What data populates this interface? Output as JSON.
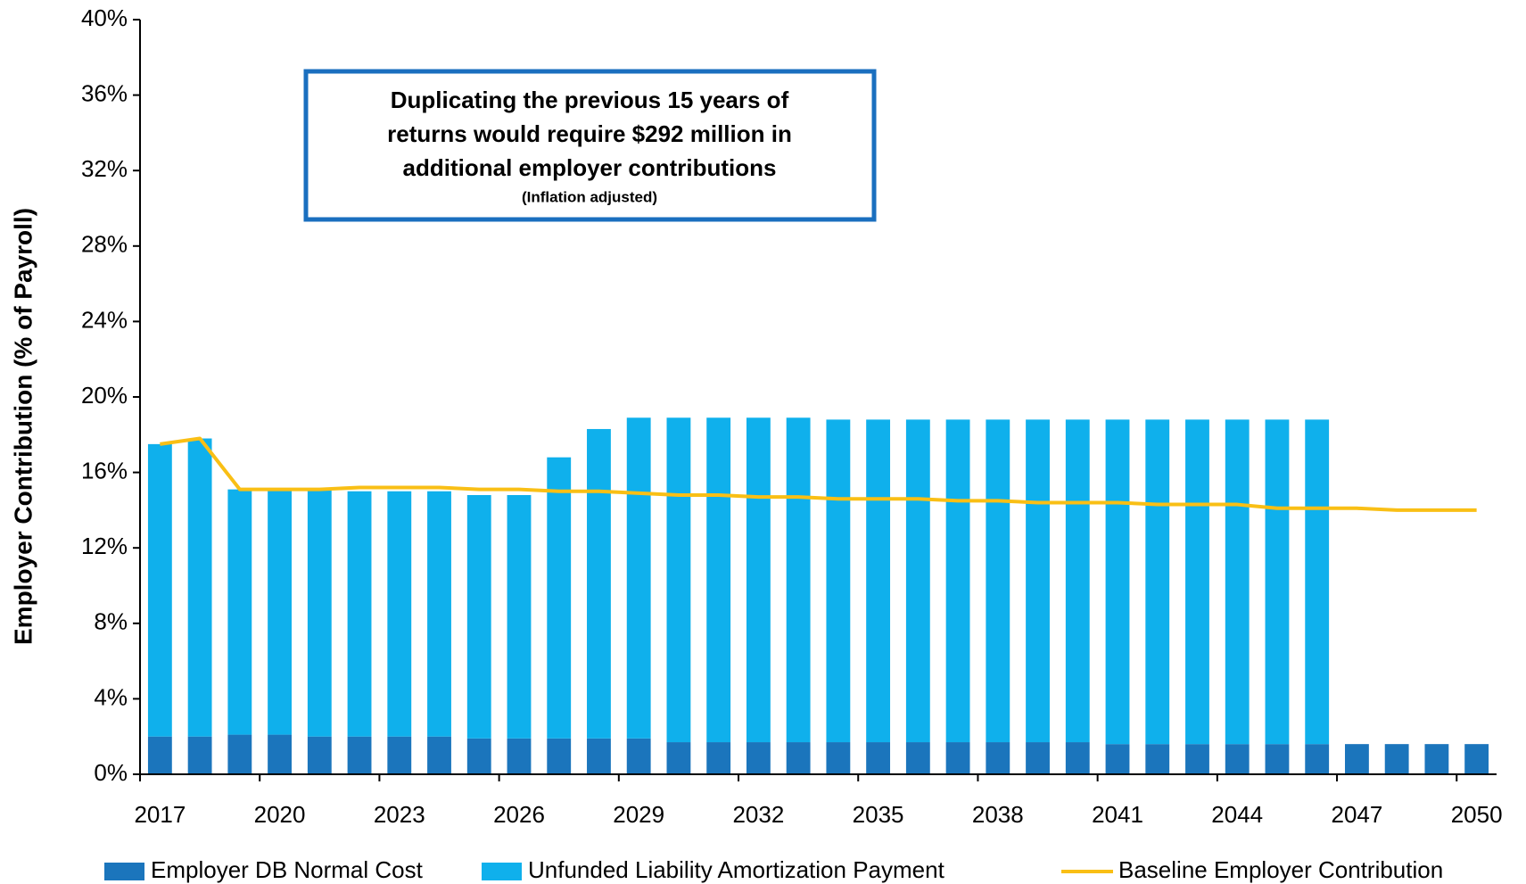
{
  "chart_data": {
    "type": "bar",
    "stacked": true,
    "y_axis_label": "Employer Contribution (% of Payroll)",
    "annotation": [
      "Duplicating the previous 15 years of",
      "returns would require $292 million in",
      "additional employer contributions",
      "(Inflation adjusted)"
    ],
    "categories": [
      "2017",
      null,
      null,
      "2020",
      null,
      null,
      "2023",
      null,
      null,
      "2026",
      null,
      null,
      "2029",
      null,
      null,
      "2032",
      null,
      null,
      "2035",
      null,
      null,
      "2038",
      null,
      null,
      "2041",
      null,
      null,
      "2044",
      null,
      null,
      "2047",
      null,
      null,
      "2050"
    ],
    "series": [
      {
        "name": "Employer DB Normal Cost",
        "color": "#1b75bc",
        "type": "bar",
        "values": [
          2.0,
          2.0,
          2.1,
          2.1,
          2.0,
          2.0,
          2.0,
          2.0,
          1.9,
          1.9,
          1.9,
          1.9,
          1.9,
          1.7,
          1.7,
          1.7,
          1.7,
          1.7,
          1.7,
          1.7,
          1.7,
          1.7,
          1.7,
          1.7,
          1.6,
          1.6,
          1.6,
          1.6,
          1.6,
          1.6,
          1.6,
          1.6,
          1.6,
          1.6
        ]
      },
      {
        "name": "Unfunded Liability Amortization Payment",
        "color": "#0fb0ec",
        "type": "bar",
        "values": [
          15.5,
          15.8,
          13.0,
          13.0,
          13.1,
          13.0,
          13.0,
          13.0,
          12.9,
          12.9,
          14.9,
          16.4,
          17.0,
          17.2,
          17.2,
          17.2,
          17.2,
          17.1,
          17.1,
          17.1,
          17.1,
          17.1,
          17.1,
          17.1,
          17.2,
          17.2,
          17.2,
          17.2,
          17.2,
          17.2,
          0,
          0,
          0,
          0
        ]
      },
      {
        "name": "Baseline Employer Contribution",
        "color": "#f9bf15",
        "type": "line",
        "values": [
          17.5,
          17.8,
          15.1,
          15.1,
          15.1,
          15.2,
          15.2,
          15.2,
          15.1,
          15.1,
          15.0,
          15.0,
          14.9,
          14.8,
          14.8,
          14.7,
          14.7,
          14.6,
          14.6,
          14.6,
          14.5,
          14.5,
          14.4,
          14.4,
          14.4,
          14.3,
          14.3,
          14.3,
          14.1,
          14.1,
          14.1,
          14.0,
          14.0,
          14.0
        ]
      }
    ],
    "ylim": [
      0,
      40
    ],
    "yticks": [
      {
        "value": 0,
        "label": "0%"
      },
      {
        "value": 4,
        "label": "4%"
      },
      {
        "value": 8,
        "label": "8%"
      },
      {
        "value": 12,
        "label": "12%"
      },
      {
        "value": 16,
        "label": "16%"
      },
      {
        "value": 20,
        "label": "20%"
      },
      {
        "value": 24,
        "label": "24%"
      },
      {
        "value": 28,
        "label": "28%"
      },
      {
        "value": 32,
        "label": "32%"
      },
      {
        "value": 36,
        "label": "36%"
      },
      {
        "value": 40,
        "label": "40%"
      }
    ],
    "grid": false
  }
}
